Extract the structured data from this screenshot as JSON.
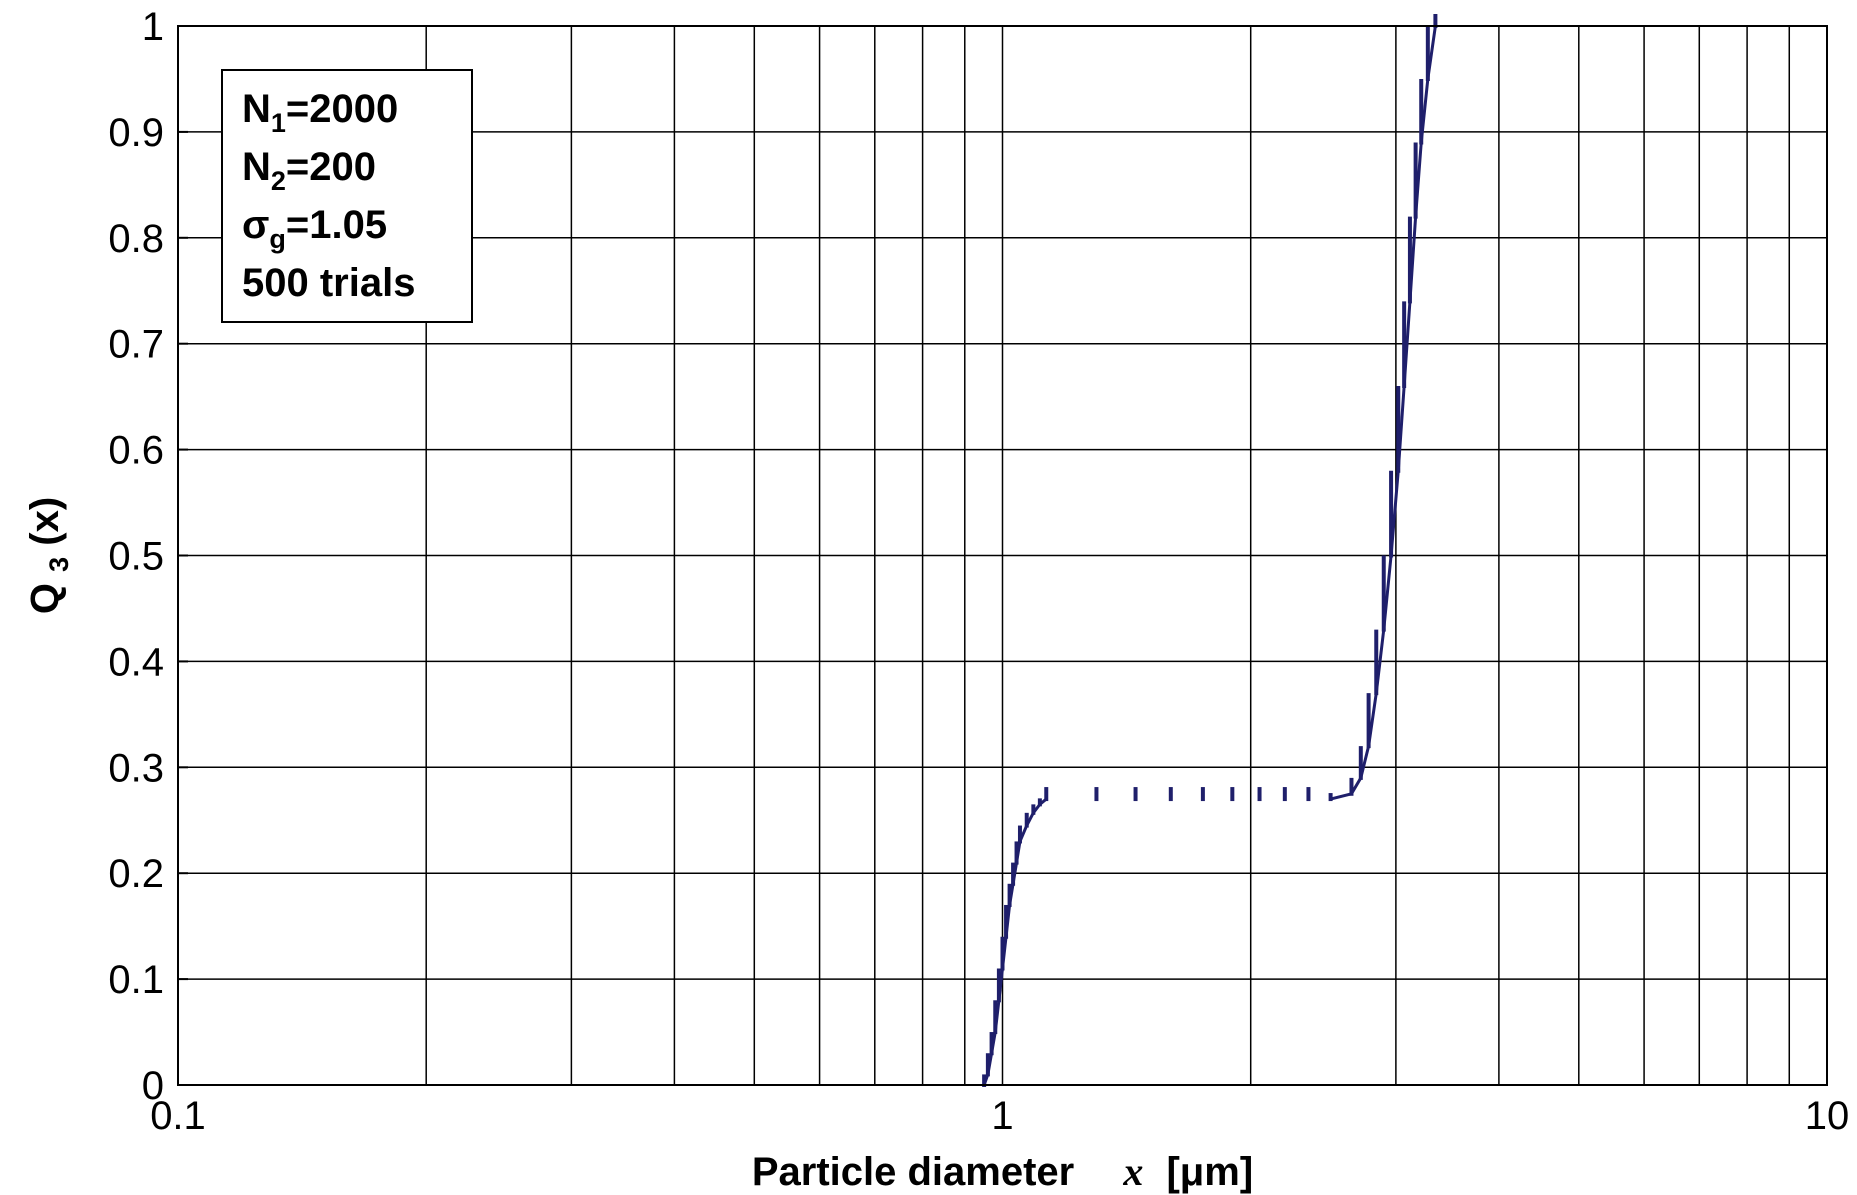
{
  "chart_data": {
    "type": "line",
    "x_scale": "log",
    "xlim": [
      0.1,
      10
    ],
    "ylim": [
      0,
      1
    ],
    "x_ticks": [
      0.1,
      1,
      10
    ],
    "x_tick_labels": [
      "0.1",
      "1",
      "10"
    ],
    "y_ticks": [
      0,
      0.1,
      0.2,
      0.3,
      0.4,
      0.5,
      0.6,
      0.7,
      0.8,
      0.9,
      1
    ],
    "y_tick_labels": [
      "0",
      "0.1",
      "0.2",
      "0.3",
      "0.4",
      "0.5",
      "0.6",
      "0.7",
      "0.8",
      "0.9",
      "1"
    ],
    "grid": true,
    "xlabel": {
      "text": "Particle diameter",
      "variable": "x",
      "unit": "[μm]"
    },
    "ylabel": {
      "main": "Q",
      "sub": "3",
      "suffix": "(x)"
    },
    "legend_placement": "top-left",
    "annotation_lines": [
      {
        "main": "N",
        "sub": "1",
        "rest": "=2000"
      },
      {
        "main": "N",
        "sub": "2",
        "rest": "=200"
      },
      {
        "main": "σ",
        "sub": "g",
        "rest": "=1.05"
      },
      {
        "main": "500 trials",
        "sub": "",
        "rest": ""
      }
    ],
    "series_color": "#1f1f6b",
    "series": [
      {
        "style": "step-dashes",
        "points": [
          {
            "x": 0.95,
            "y": 0.0
          },
          {
            "x": 0.96,
            "y": 0.01
          },
          {
            "x": 0.97,
            "y": 0.03
          },
          {
            "x": 0.98,
            "y": 0.05
          },
          {
            "x": 0.99,
            "y": 0.08
          },
          {
            "x": 1.0,
            "y": 0.11
          },
          {
            "x": 1.01,
            "y": 0.14
          },
          {
            "x": 1.02,
            "y": 0.17
          },
          {
            "x": 1.03,
            "y": 0.19
          },
          {
            "x": 1.04,
            "y": 0.21
          },
          {
            "x": 1.05,
            "y": 0.23
          },
          {
            "x": 1.07,
            "y": 0.245
          },
          {
            "x": 1.09,
            "y": 0.257
          },
          {
            "x": 1.11,
            "y": 0.265
          },
          {
            "x": 1.13,
            "y": 0.27
          },
          {
            "x": 1.3,
            "y": 0.27
          },
          {
            "x": 1.45,
            "y": 0.27
          },
          {
            "x": 1.6,
            "y": 0.27
          },
          {
            "x": 1.75,
            "y": 0.27
          },
          {
            "x": 1.9,
            "y": 0.27
          },
          {
            "x": 2.05,
            "y": 0.27
          },
          {
            "x": 2.2,
            "y": 0.27
          },
          {
            "x": 2.35,
            "y": 0.27
          },
          {
            "x": 2.5,
            "y": 0.27
          },
          {
            "x": 2.65,
            "y": 0.275
          },
          {
            "x": 2.72,
            "y": 0.29
          },
          {
            "x": 2.78,
            "y": 0.32
          },
          {
            "x": 2.84,
            "y": 0.37
          },
          {
            "x": 2.9,
            "y": 0.43
          },
          {
            "x": 2.96,
            "y": 0.5
          },
          {
            "x": 3.02,
            "y": 0.58
          },
          {
            "x": 3.07,
            "y": 0.66
          },
          {
            "x": 3.12,
            "y": 0.74
          },
          {
            "x": 3.17,
            "y": 0.82
          },
          {
            "x": 3.22,
            "y": 0.89
          },
          {
            "x": 3.28,
            "y": 0.95
          },
          {
            "x": 3.35,
            "y": 1.0
          }
        ]
      }
    ]
  }
}
